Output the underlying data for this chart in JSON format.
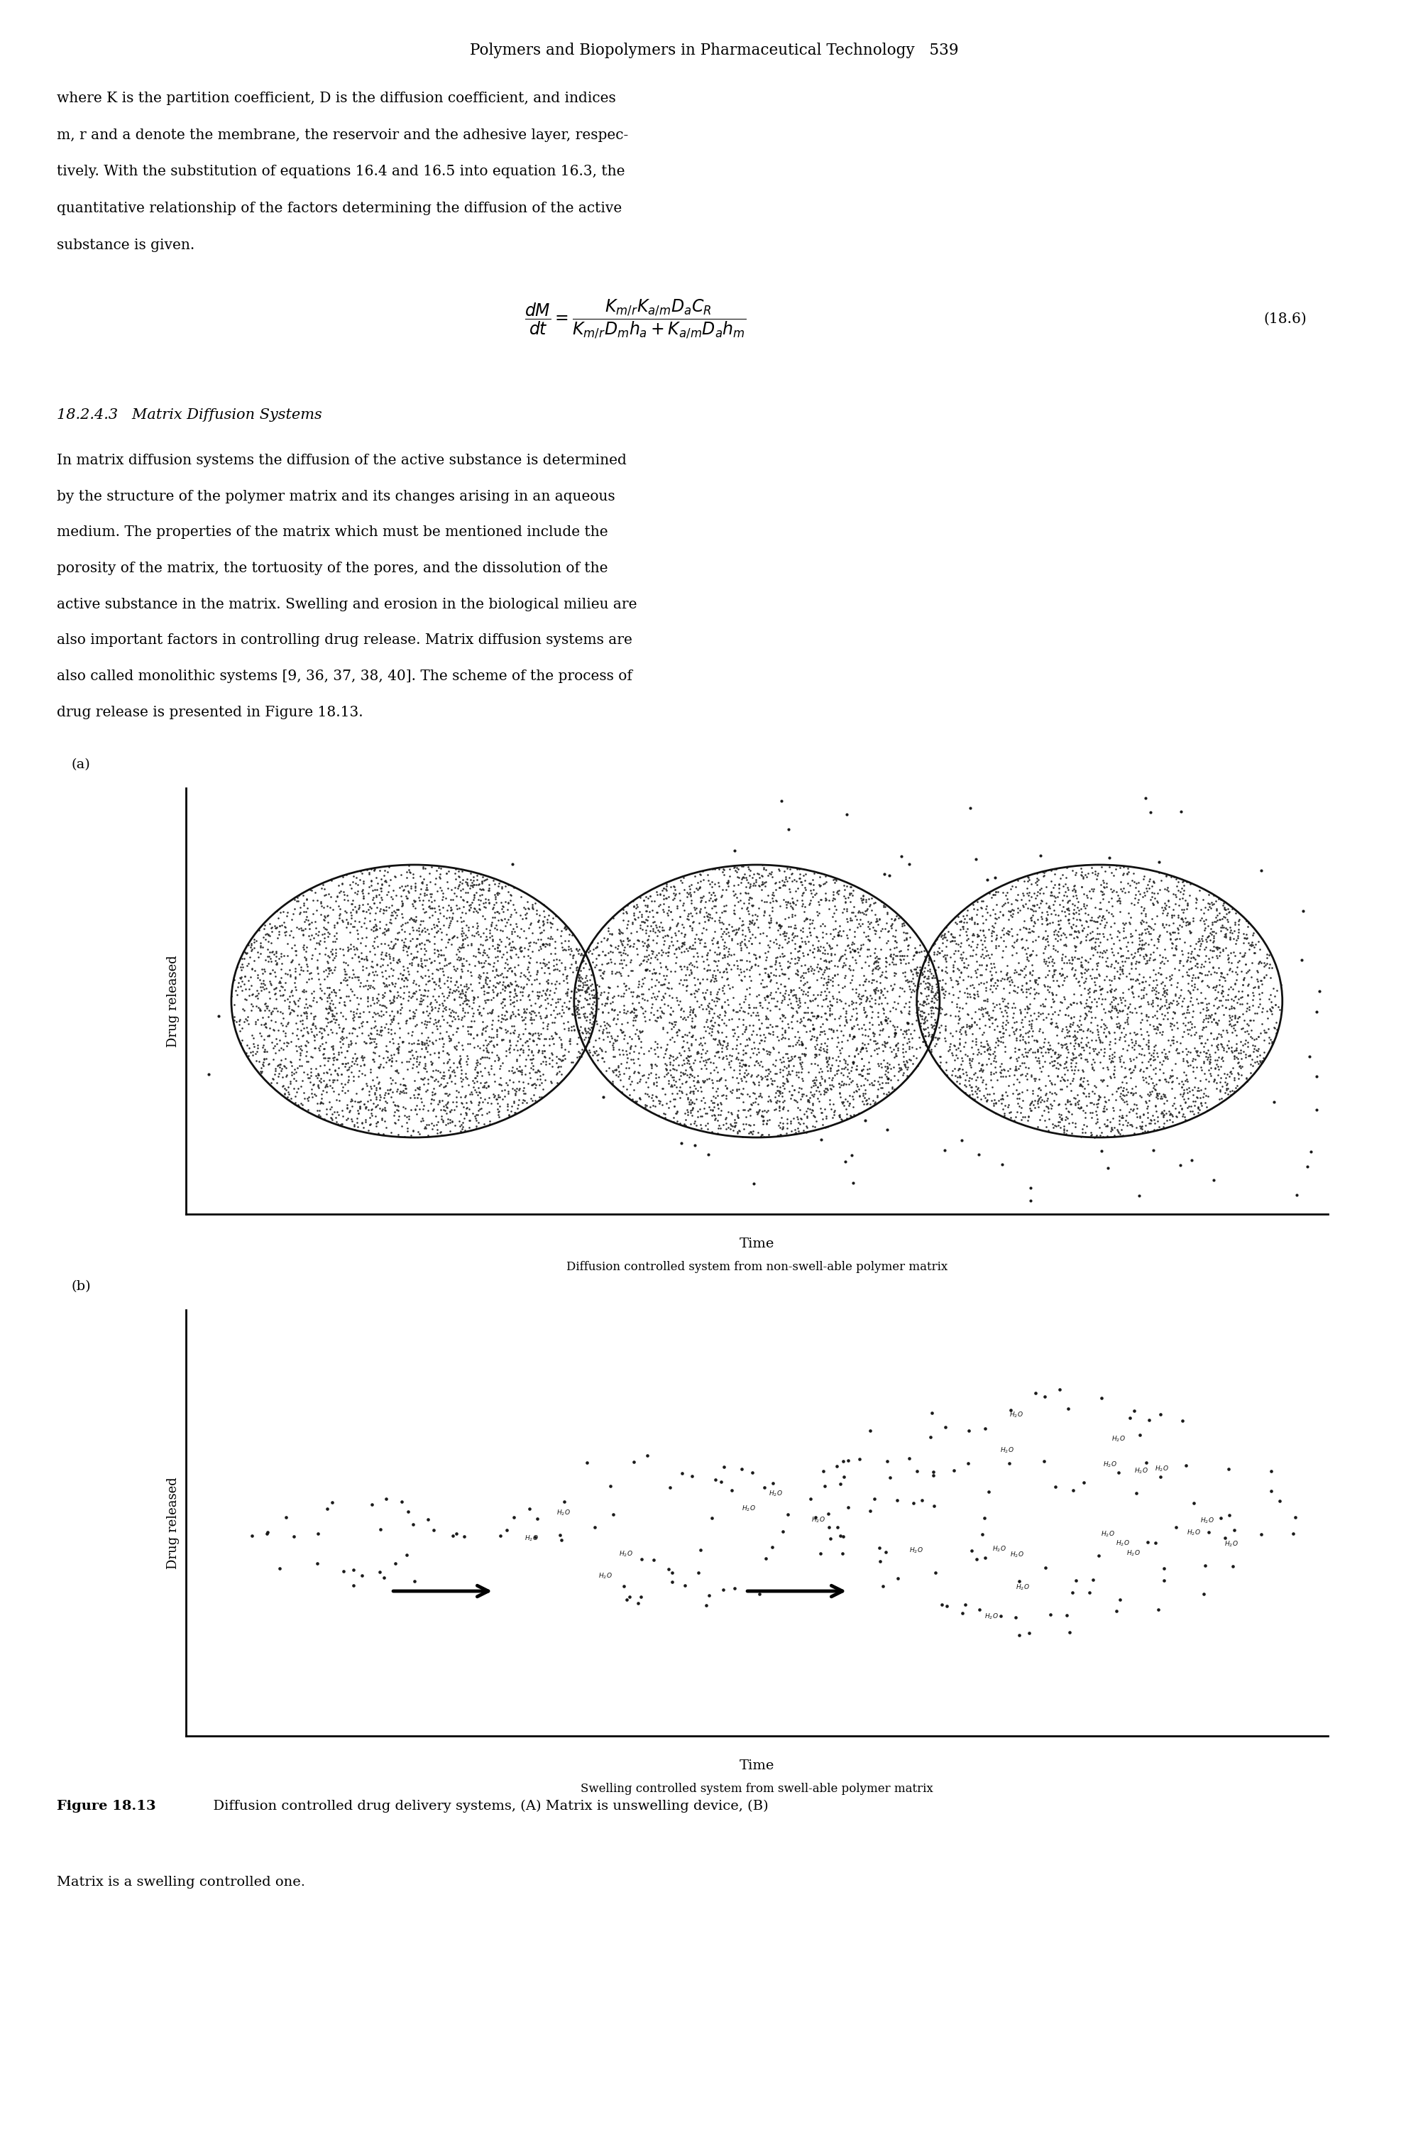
{
  "bg_color": "#ffffff",
  "text_color": "#000000",
  "header_text": "Polymers and Biopolymers in Pharmaceutical Technology   539",
  "body1_lines": [
    "where K is the partition coefficient, D is the diffusion coefficient, and indices",
    "m, r and a denote the membrane, the reservoir and the adhesive layer, respec-",
    "tively. With the substitution of equations 16.4 and 16.5 into equation 16.3, the",
    "quantitative relationship of the factors determining the diffusion of the active",
    "substance is given."
  ],
  "equation_label": "(18.6)",
  "section_header": "18.2.4.3   Matrix Diffusion Systems",
  "body2_lines": [
    "In matrix diffusion systems the diffusion of the active substance is determined",
    "by the structure of the polymer matrix and its changes arising in an aqueous",
    "medium. The properties of the matrix which must be mentioned include the",
    "porosity of the matrix, the tortuosity of the pores, and the dissolution of the",
    "active substance in the matrix. Swelling and erosion in the biological milieu are",
    "also important factors in controlling drug release. Matrix diffusion systems are",
    "also called monolithic systems [9, 36, 37, 38, 40]. The scheme of the process of",
    "drug release is presented in Figure 18.13."
  ],
  "panel_a_label": "(a)",
  "panel_b_label": "(b)",
  "panel_a_ylabel": "Drug released",
  "panel_b_ylabel": "Drug released",
  "panel_a_xlabel": "Time",
  "panel_b_xlabel": "Time",
  "panel_a_caption": "Diffusion controlled system from non-swell-able polymer matrix",
  "panel_b_caption": "Swelling controlled system from swell-able polymer matrix",
  "caption_bold": "Figure 18.13",
  "caption_rest": "  Diffusion controlled drug delivery systems, (A) Matrix is unswelling device, (B)",
  "caption_line2": "Matrix is a swelling controlled one.",
  "dark_fill": "#2d2d2d",
  "dot_color": "#1a1a1a"
}
